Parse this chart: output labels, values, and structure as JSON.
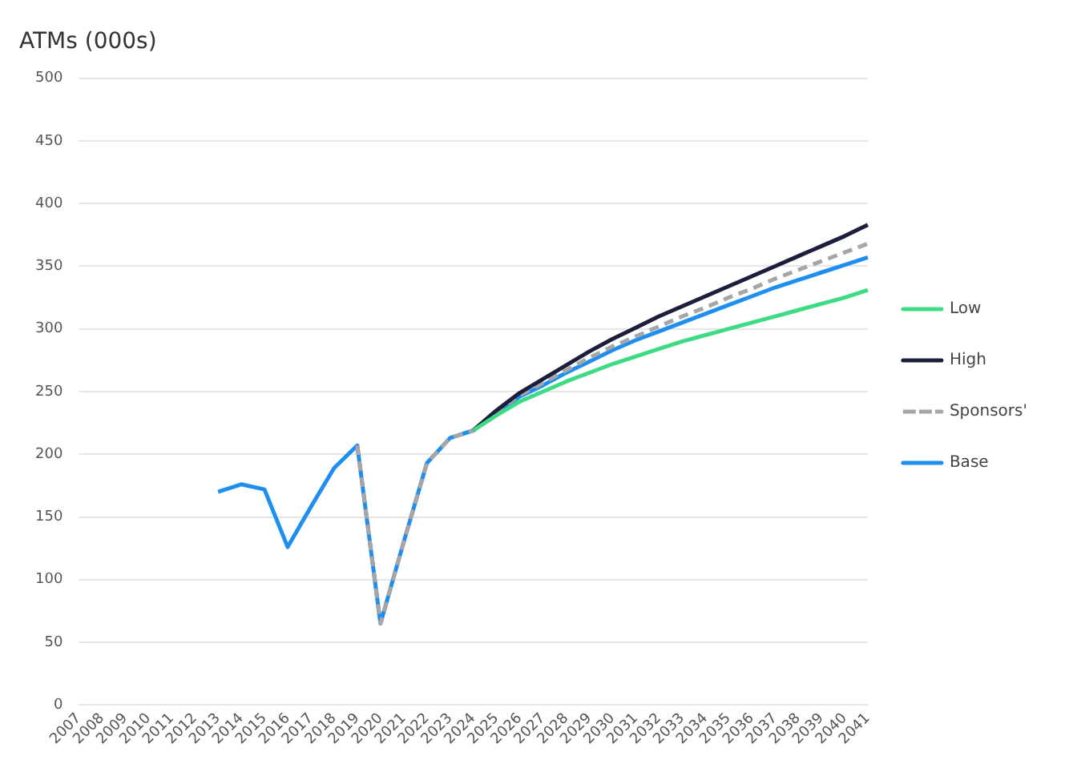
{
  "chart_data": {
    "type": "line",
    "ylabel": "ATMs (000s)",
    "categories": [
      "2007",
      "2008",
      "2009",
      "2010",
      "2011",
      "2012",
      "2013",
      "2014",
      "2015",
      "2016",
      "2017",
      "2018",
      "2019",
      "2020",
      "2021",
      "2022",
      "2023",
      "2024",
      "2025",
      "2026",
      "2027",
      "2028",
      "2029",
      "2030",
      "2031",
      "2032",
      "2033",
      "2034",
      "2035",
      "2036",
      "2037",
      "2038",
      "2039",
      "2040",
      "2041"
    ],
    "series": [
      {
        "name": "Low",
        "color": "#3ddc84",
        "values": [
          null,
          null,
          null,
          null,
          null,
          null,
          null,
          null,
          null,
          null,
          null,
          null,
          null,
          null,
          null,
          null,
          null,
          219,
          231,
          242,
          250,
          258,
          265,
          272,
          278,
          284,
          290,
          295,
          300,
          305,
          310,
          315,
          320,
          325,
          331
        ]
      },
      {
        "name": "High",
        "color": "#1b1f3b",
        "values": [
          null,
          null,
          null,
          null,
          null,
          null,
          null,
          null,
          null,
          null,
          null,
          null,
          null,
          null,
          null,
          null,
          null,
          219,
          235,
          249,
          260,
          271,
          282,
          292,
          301,
          310,
          318,
          326,
          334,
          342,
          350,
          358,
          366,
          374,
          383
        ]
      },
      {
        "name": "Sponsors'",
        "color": "#a6a6a6",
        "line_style": "dashed",
        "values": [
          null,
          null,
          null,
          null,
          null,
          null,
          null,
          null,
          null,
          null,
          null,
          null,
          207,
          65,
          130,
          193,
          213,
          219,
          234,
          247,
          257,
          267,
          277,
          286,
          294,
          302,
          310,
          317,
          325,
          332,
          340,
          347,
          354,
          361,
          368
        ]
      },
      {
        "name": "Base",
        "color": "#1f8ef1",
        "values": [
          null,
          null,
          null,
          null,
          null,
          null,
          170,
          176,
          172,
          126,
          158,
          189,
          207,
          65,
          130,
          193,
          213,
          219,
          233,
          246,
          255,
          265,
          274,
          283,
          291,
          298,
          305,
          312,
          319,
          326,
          333,
          339,
          345,
          351,
          357
        ]
      }
    ],
    "ylim": [
      0,
      500
    ],
    "yticks": [
      0,
      50,
      100,
      150,
      200,
      250,
      300,
      350,
      400,
      450,
      500
    ],
    "grid": "y",
    "legend": "right",
    "marker": "none",
    "line_style": "solid"
  }
}
